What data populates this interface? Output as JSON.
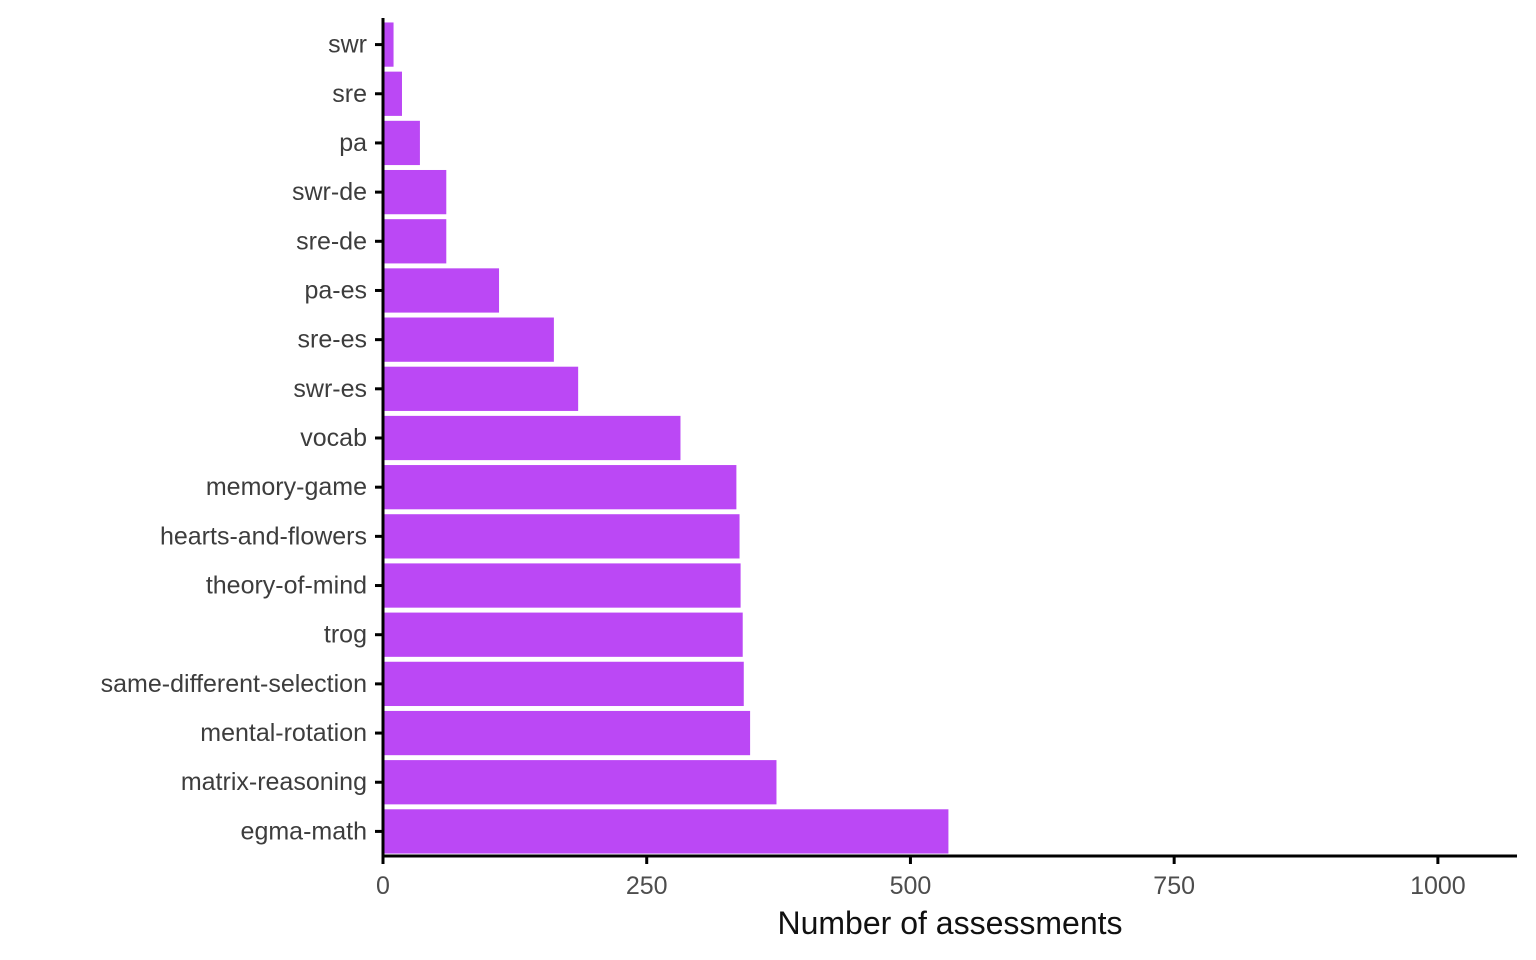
{
  "chart_data": {
    "type": "bar",
    "orientation": "horizontal",
    "categories": [
      "swr",
      "sre",
      "pa",
      "swr-de",
      "sre-de",
      "pa-es",
      "sre-es",
      "swr-es",
      "vocab",
      "memory-game",
      "hearts-and-flowers",
      "theory-of-mind",
      "trog",
      "same-different-selection",
      "mental-rotation",
      "matrix-reasoning",
      "egma-math"
    ],
    "values": [
      10,
      18,
      35,
      60,
      60,
      110,
      162,
      185,
      282,
      335,
      338,
      339,
      341,
      342,
      348,
      373,
      536
    ],
    "xlabel": "Number of assessments",
    "ylabel": "",
    "xlim": [
      0,
      1075
    ],
    "xticks": [
      0,
      250,
      500,
      750,
      1000
    ],
    "grid": false,
    "bar_color": "#bb48f5"
  }
}
